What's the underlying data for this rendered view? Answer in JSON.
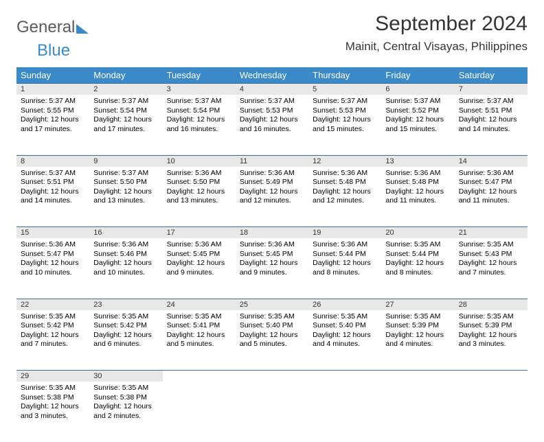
{
  "brand": {
    "part1": "General",
    "part2": "Blue"
  },
  "title": "September 2024",
  "location": "Mainit, Central Visayas, Philippines",
  "colors": {
    "header_bg": "#3a89c9",
    "header_text": "#ffffff",
    "daynum_bg": "#e8e8e8",
    "row_border": "#3a6e9a",
    "text": "#000000",
    "logo_gray": "#5a5a5a",
    "logo_blue": "#3a89c9"
  },
  "weekdays": [
    "Sunday",
    "Monday",
    "Tuesday",
    "Wednesday",
    "Thursday",
    "Friday",
    "Saturday"
  ],
  "weeks": [
    [
      {
        "n": "1",
        "sr": "5:37 AM",
        "ss": "5:55 PM",
        "dl": "12 hours and 17 minutes."
      },
      {
        "n": "2",
        "sr": "5:37 AM",
        "ss": "5:54 PM",
        "dl": "12 hours and 17 minutes."
      },
      {
        "n": "3",
        "sr": "5:37 AM",
        "ss": "5:54 PM",
        "dl": "12 hours and 16 minutes."
      },
      {
        "n": "4",
        "sr": "5:37 AM",
        "ss": "5:53 PM",
        "dl": "12 hours and 16 minutes."
      },
      {
        "n": "5",
        "sr": "5:37 AM",
        "ss": "5:53 PM",
        "dl": "12 hours and 15 minutes."
      },
      {
        "n": "6",
        "sr": "5:37 AM",
        "ss": "5:52 PM",
        "dl": "12 hours and 15 minutes."
      },
      {
        "n": "7",
        "sr": "5:37 AM",
        "ss": "5:51 PM",
        "dl": "12 hours and 14 minutes."
      }
    ],
    [
      {
        "n": "8",
        "sr": "5:37 AM",
        "ss": "5:51 PM",
        "dl": "12 hours and 14 minutes."
      },
      {
        "n": "9",
        "sr": "5:37 AM",
        "ss": "5:50 PM",
        "dl": "12 hours and 13 minutes."
      },
      {
        "n": "10",
        "sr": "5:36 AM",
        "ss": "5:50 PM",
        "dl": "12 hours and 13 minutes."
      },
      {
        "n": "11",
        "sr": "5:36 AM",
        "ss": "5:49 PM",
        "dl": "12 hours and 12 minutes."
      },
      {
        "n": "12",
        "sr": "5:36 AM",
        "ss": "5:48 PM",
        "dl": "12 hours and 12 minutes."
      },
      {
        "n": "13",
        "sr": "5:36 AM",
        "ss": "5:48 PM",
        "dl": "12 hours and 11 minutes."
      },
      {
        "n": "14",
        "sr": "5:36 AM",
        "ss": "5:47 PM",
        "dl": "12 hours and 11 minutes."
      }
    ],
    [
      {
        "n": "15",
        "sr": "5:36 AM",
        "ss": "5:47 PM",
        "dl": "12 hours and 10 minutes."
      },
      {
        "n": "16",
        "sr": "5:36 AM",
        "ss": "5:46 PM",
        "dl": "12 hours and 10 minutes."
      },
      {
        "n": "17",
        "sr": "5:36 AM",
        "ss": "5:45 PM",
        "dl": "12 hours and 9 minutes."
      },
      {
        "n": "18",
        "sr": "5:36 AM",
        "ss": "5:45 PM",
        "dl": "12 hours and 9 minutes."
      },
      {
        "n": "19",
        "sr": "5:36 AM",
        "ss": "5:44 PM",
        "dl": "12 hours and 8 minutes."
      },
      {
        "n": "20",
        "sr": "5:35 AM",
        "ss": "5:44 PM",
        "dl": "12 hours and 8 minutes."
      },
      {
        "n": "21",
        "sr": "5:35 AM",
        "ss": "5:43 PM",
        "dl": "12 hours and 7 minutes."
      }
    ],
    [
      {
        "n": "22",
        "sr": "5:35 AM",
        "ss": "5:42 PM",
        "dl": "12 hours and 7 minutes."
      },
      {
        "n": "23",
        "sr": "5:35 AM",
        "ss": "5:42 PM",
        "dl": "12 hours and 6 minutes."
      },
      {
        "n": "24",
        "sr": "5:35 AM",
        "ss": "5:41 PM",
        "dl": "12 hours and 5 minutes."
      },
      {
        "n": "25",
        "sr": "5:35 AM",
        "ss": "5:40 PM",
        "dl": "12 hours and 5 minutes."
      },
      {
        "n": "26",
        "sr": "5:35 AM",
        "ss": "5:40 PM",
        "dl": "12 hours and 4 minutes."
      },
      {
        "n": "27",
        "sr": "5:35 AM",
        "ss": "5:39 PM",
        "dl": "12 hours and 4 minutes."
      },
      {
        "n": "28",
        "sr": "5:35 AM",
        "ss": "5:39 PM",
        "dl": "12 hours and 3 minutes."
      }
    ],
    [
      {
        "n": "29",
        "sr": "5:35 AM",
        "ss": "5:38 PM",
        "dl": "12 hours and 3 minutes."
      },
      {
        "n": "30",
        "sr": "5:35 AM",
        "ss": "5:38 PM",
        "dl": "12 hours and 2 minutes."
      },
      null,
      null,
      null,
      null,
      null
    ]
  ],
  "labels": {
    "sunrise": "Sunrise: ",
    "sunset": "Sunset: ",
    "daylight": "Daylight: "
  }
}
